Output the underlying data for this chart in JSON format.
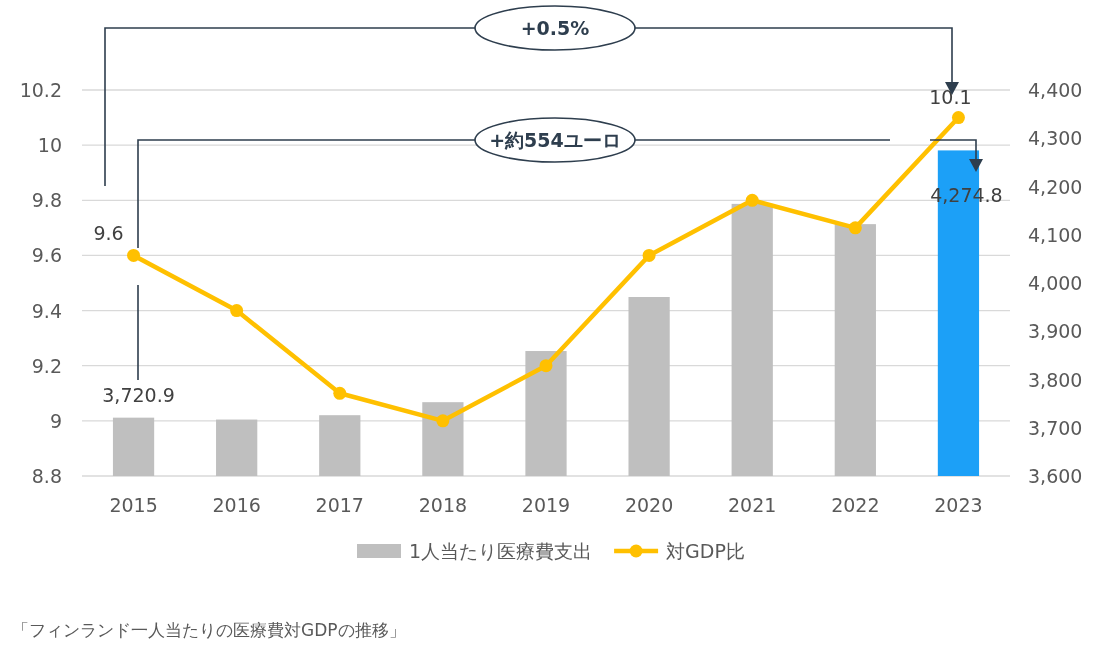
{
  "chart_data": {
    "type": "bar",
    "categories": [
      "2015",
      "2016",
      "2017",
      "2018",
      "2019",
      "2020",
      "2021",
      "2022",
      "2023"
    ],
    "series": [
      {
        "name": "1人当たり医療費支出",
        "axis": "y2",
        "color": "#bfbfbf",
        "colors": [
          "#bfbfbf",
          "#bfbfbf",
          "#bfbfbf",
          "#bfbfbf",
          "#bfbfbf",
          "#bfbfbf",
          "#bfbfbf",
          "#bfbfbf",
          "#1ca0f7"
        ],
        "values": [
          3720.9,
          3717,
          3726,
          3753,
          3859,
          3971,
          4164,
          4122,
          4274.8
        ],
        "value_labels": [
          "3,720.9",
          null,
          null,
          null,
          null,
          null,
          null,
          null,
          "4,274.8"
        ]
      },
      {
        "name": "対GDP比",
        "type": "line",
        "color": "#ffc000",
        "marker": "circle",
        "values": [
          9.6,
          9.4,
          9.1,
          9.0,
          9.2,
          9.6,
          9.8,
          9.7,
          10.1
        ],
        "value_labels": [
          "9.6",
          null,
          null,
          null,
          null,
          null,
          null,
          null,
          "10.1"
        ]
      }
    ],
    "ylim": [
      8.8,
      10.2
    ],
    "yticks": [
      8.8,
      9,
      9.2,
      9.4,
      9.6,
      9.8,
      10,
      10.2
    ],
    "y2lim": [
      3600,
      4400
    ],
    "y2ticks": [
      {
        "value": 3600,
        "label": "3,600"
      },
      {
        "value": 3700,
        "label": "3,700"
      },
      {
        "value": 3800,
        "label": "3,800"
      },
      {
        "value": 3900,
        "label": "3,900"
      },
      {
        "value": 4000,
        "label": "4,000"
      },
      {
        "value": 4100,
        "label": "4,100"
      },
      {
        "value": 4200,
        "label": "4,200"
      },
      {
        "value": 4300,
        "label": "4,300"
      },
      {
        "value": 4400,
        "label": "4,400"
      }
    ],
    "grid": "y",
    "legend": "bottom",
    "annotations": [
      "+0.5%",
      "+約554ユーロ",
      "「フィンランド一人当たりの医療費対GDPの推移」"
    ]
  }
}
